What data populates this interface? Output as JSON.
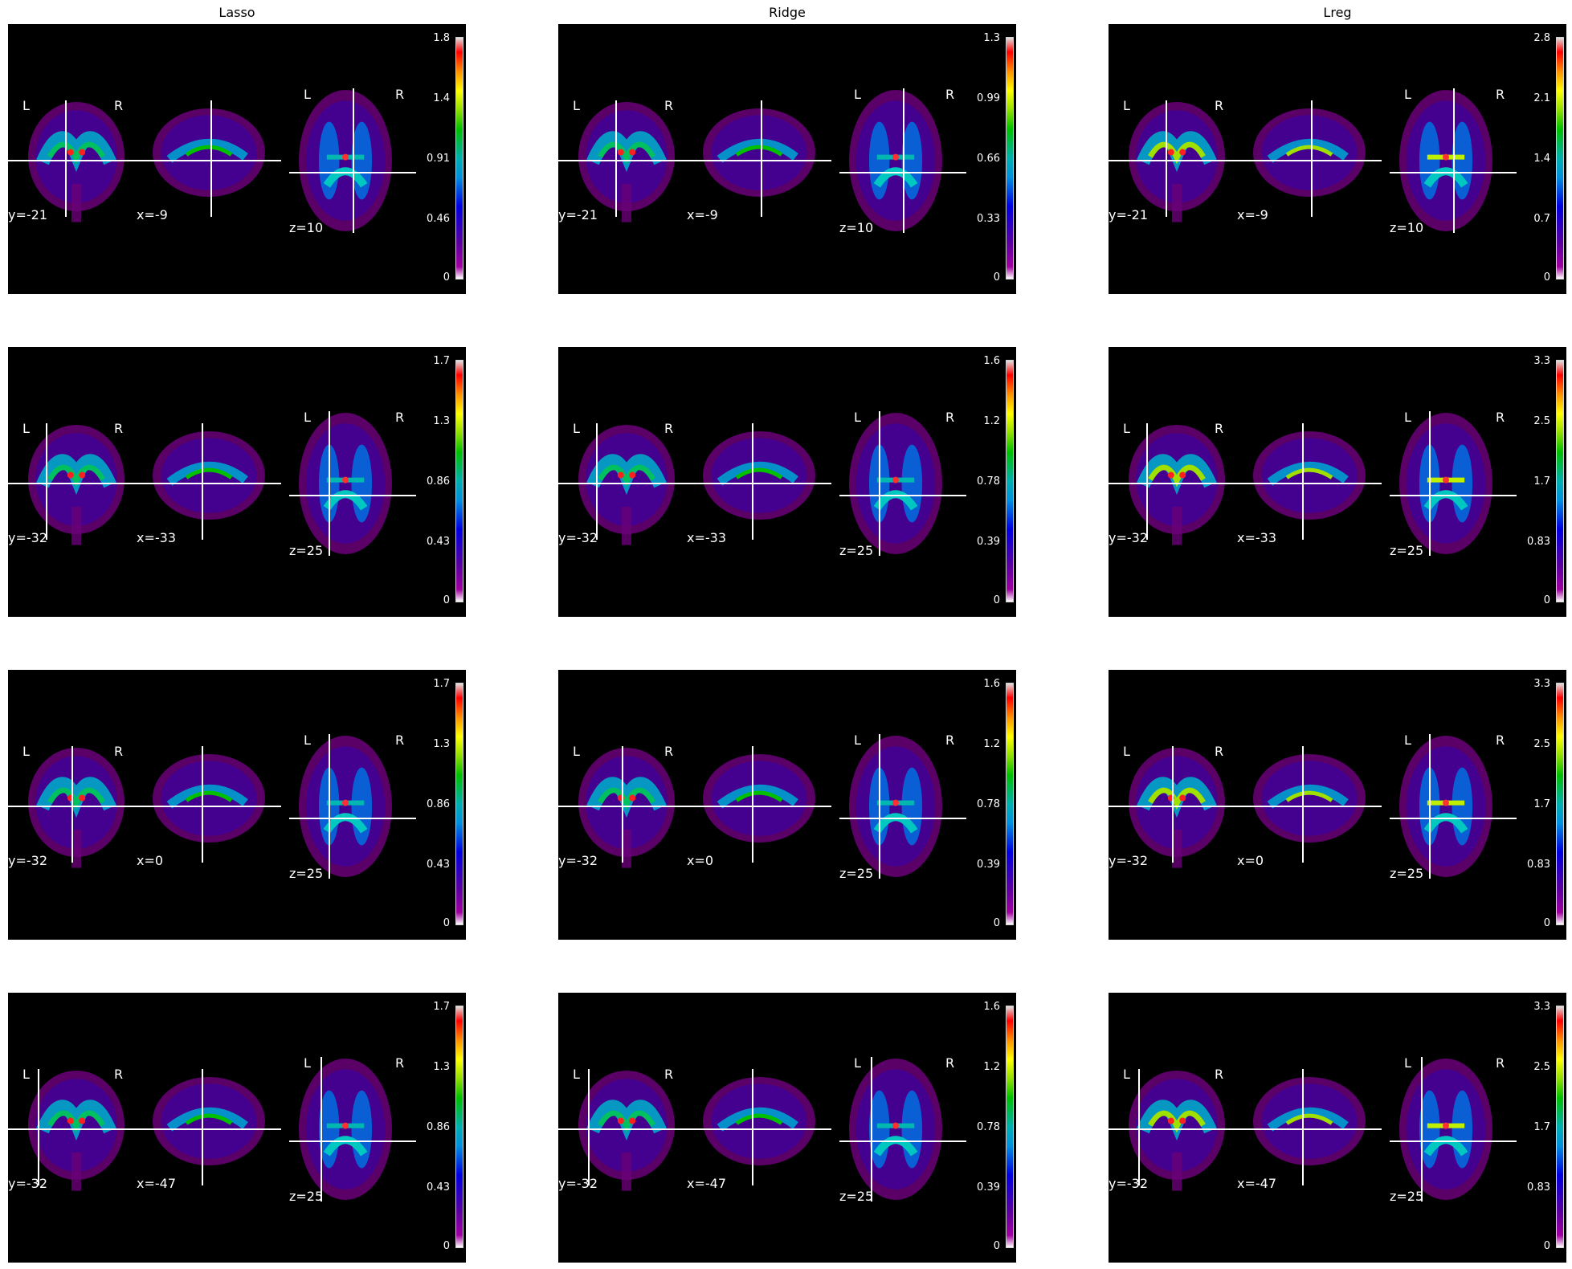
{
  "columns": [
    "Lasso",
    "Ridge",
    "Lreg"
  ],
  "colormap": [
    "#ffffff",
    "#a000a0",
    "#0000e0",
    "#00b0b0",
    "#00c000",
    "#ffff00",
    "#ff0000"
  ],
  "rows": [
    {
      "coords": [
        "y=-21",
        "x=-9",
        "z=10"
      ],
      "ticks": [
        [
          "1.8",
          "1.4",
          "0.91",
          "0.46",
          "0"
        ],
        [
          "1.3",
          "0.99",
          "0.66",
          "0.33",
          "0"
        ],
        [
          "2.8",
          "2.1",
          "1.4",
          "0.7",
          "0"
        ]
      ]
    },
    {
      "coords": [
        "y=-32",
        "x=-33",
        "z=25"
      ],
      "ticks": [
        [
          "1.7",
          "1.3",
          "0.86",
          "0.43",
          "0"
        ],
        [
          "1.6",
          "1.2",
          "0.78",
          "0.39",
          "0"
        ],
        [
          "3.3",
          "2.5",
          "1.7",
          "0.83",
          "0"
        ]
      ]
    },
    {
      "coords": [
        "y=-32",
        "x=0",
        "z=25"
      ],
      "ticks": [
        [
          "1.7",
          "1.3",
          "0.86",
          "0.43",
          "0"
        ],
        [
          "1.6",
          "1.2",
          "0.78",
          "0.39",
          "0"
        ],
        [
          "3.3",
          "2.5",
          "1.7",
          "0.83",
          "0"
        ]
      ]
    },
    {
      "coords": [
        "y=-32",
        "x=-47",
        "z=25"
      ],
      "ticks": [
        [
          "1.7",
          "1.3",
          "0.86",
          "0.43",
          "0"
        ],
        [
          "1.6",
          "1.2",
          "0.78",
          "0.39",
          "0"
        ],
        [
          "3.3",
          "2.5",
          "1.7",
          "0.83",
          "0"
        ]
      ]
    }
  ],
  "orientation": {
    "left": "L",
    "right": "R"
  }
}
